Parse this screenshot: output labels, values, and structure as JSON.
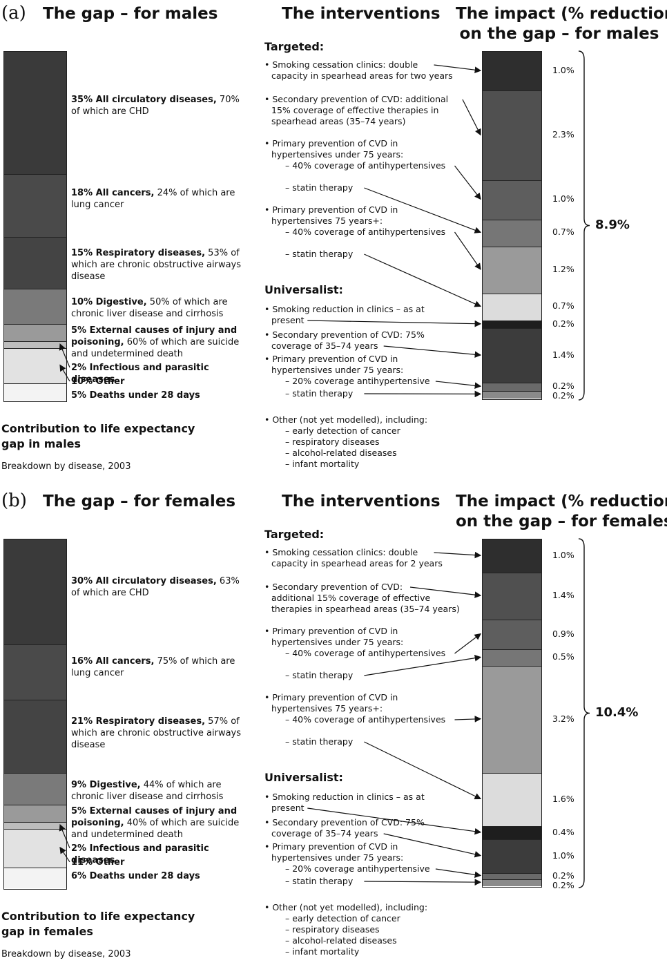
{
  "chart_data": [
    {
      "type": "bar",
      "panel": "(a)",
      "left_title": "The gap – for males",
      "middle_title": "The interventions",
      "right_title": [
        "The impact (% reduction)",
        "on the gap – for males"
      ],
      "caption": [
        "Contribution to life expectancy",
        "gap in males"
      ],
      "subcaption": "Breakdown by disease, 2003",
      "disease_breakdown": [
        {
          "percent": 35,
          "head": "35% All circulatory diseases,",
          "rest": "70% of which are CHD",
          "color": "#3a3a3a"
        },
        {
          "percent": 18,
          "head": "18% All cancers,",
          "rest": "24% of which are lung cancer",
          "color": "#4a4a4a"
        },
        {
          "percent": 15,
          "head": "15% Respiratory diseases,",
          "rest": "53% of which are chronic obstructive airways disease",
          "color": "#444444"
        },
        {
          "percent": 10,
          "head": "10% Digestive,",
          "rest": "50% of which are chronic liver disease and cirrhosis",
          "color": "#7a7a7a"
        },
        {
          "percent": 5,
          "head": "5% External causes of injury and poisoning,",
          "rest": "60% of which are suicide and undetermined death",
          "color": "#9a9a9a"
        },
        {
          "percent": 2,
          "head": "2% Infectious and parasitic diseases",
          "rest": "",
          "color": "#bdbdbd"
        },
        {
          "percent": 10,
          "head": "10% Other",
          "rest": "",
          "color": "#e2e2e2"
        },
        {
          "percent": 5,
          "head": "5% Deaths under 28 days",
          "rest": "",
          "color": "#f3f3f3"
        }
      ],
      "targeted_label": "Targeted:",
      "universalist_label": "Universalist:",
      "interventions": [
        {
          "lines": [
            "• Smoking cessation clinics: double",
            "capacity in spearhead areas for two years"
          ]
        },
        {
          "lines": [
            "• Secondary prevention of CVD: additional",
            "15% coverage of effective therapies in",
            "spearhead areas (35–74 years)"
          ]
        },
        {
          "lines": [
            "• Primary prevention of CVD in",
            "hypertensives under 75 years:",
            "– 40% coverage of antihypertensives"
          ]
        },
        {
          "lines": [
            "– statin therapy"
          ]
        },
        {
          "lines": [
            "• Primary prevention of CVD in",
            "hypertensives 75 years+:",
            "– 40% coverage of antihypertensives"
          ]
        },
        {
          "lines": [
            "– statin therapy"
          ]
        },
        {
          "lines": [
            "• Smoking reduction in clinics – as at",
            "present"
          ]
        },
        {
          "lines": [
            "• Secondary prevention of CVD: 75%",
            "coverage of 35–74 years"
          ]
        },
        {
          "lines": [
            "• Primary prevention of CVD in",
            "hypertensives under 75 years:",
            "– 20% coverage antihypertensive"
          ]
        },
        {
          "lines": [
            "– statin therapy"
          ]
        }
      ],
      "other_lines": [
        "• Other (not yet modelled), including:",
        "– early detection of cancer",
        "– respiratory diseases",
        "– alcohol-related diseases",
        "– infant mortality"
      ],
      "impact": [
        {
          "value": 1.0,
          "label": "1.0%",
          "color": "#2e2e2e"
        },
        {
          "value": 2.3,
          "label": "2.3%",
          "color": "#505050"
        },
        {
          "value": 1.0,
          "label": "1.0%",
          "color": "#5e5e5e"
        },
        {
          "value": 0.7,
          "label": "0.7%",
          "color": "#767676"
        },
        {
          "value": 1.2,
          "label": "1.2%",
          "color": "#9a9a9a"
        },
        {
          "value": 0.7,
          "label": "0.7%",
          "color": "#dcdcdc"
        },
        {
          "value": 0.2,
          "label": "0.2%",
          "color": "#1e1e1e"
        },
        {
          "value": 1.4,
          "label": "1.4%",
          "color": "#3c3c3c"
        },
        {
          "value": 0.2,
          "label": "0.2%",
          "color": "#6a6a6a"
        },
        {
          "value": 0.2,
          "label": "0.2%",
          "color": "#8a8a8a"
        }
      ],
      "total": "8.9%"
    },
    {
      "type": "bar",
      "panel": "(b)",
      "left_title": "The gap – for females",
      "middle_title": "The interventions",
      "right_title": [
        "The impact (% reduction)",
        "on the gap – for females"
      ],
      "caption": [
        "Contribution to life expectancy",
        "gap in females"
      ],
      "subcaption": "Breakdown by disease, 2003",
      "disease_breakdown": [
        {
          "percent": 30,
          "head": "30% All circulatory diseases,",
          "rest": "63% of which are CHD",
          "color": "#3a3a3a"
        },
        {
          "percent": 16,
          "head": "16% All cancers,",
          "rest": "75% of which are lung cancer",
          "color": "#4a4a4a"
        },
        {
          "percent": 21,
          "head": "21% Respiratory diseases,",
          "rest": "57% of which are chronic obstructive airways disease",
          "color": "#444444"
        },
        {
          "percent": 9,
          "head": "9% Digestive,",
          "rest": "44% of which are chronic liver disease and cirrhosis",
          "color": "#7a7a7a"
        },
        {
          "percent": 5,
          "head": "5% External causes of injury and poisoning,",
          "rest": "40% of which are suicide and undetermined death",
          "color": "#9a9a9a"
        },
        {
          "percent": 2,
          "head": "2% Infectious and parasitic diseases",
          "rest": "",
          "color": "#bdbdbd"
        },
        {
          "percent": 11,
          "head": "11% Other",
          "rest": "",
          "color": "#e2e2e2"
        },
        {
          "percent": 6,
          "head": "6% Deaths under 28 days",
          "rest": "",
          "color": "#f3f3f3"
        }
      ],
      "targeted_label": "Targeted:",
      "universalist_label": "Universalist:",
      "interventions": [
        {
          "lines": [
            "• Smoking cessation clinics: double",
            "capacity in spearhead areas for 2 years"
          ]
        },
        {
          "lines": [
            "• Secondary prevention of CVD:",
            "additional 15% coverage of effective",
            "therapies in spearhead areas (35–74 years)"
          ]
        },
        {
          "lines": [
            "• Primary prevention of CVD in",
            "hypertensives under 75 years:",
            "– 40% coverage of antihypertensives"
          ]
        },
        {
          "lines": [
            "– statin therapy"
          ]
        },
        {
          "lines": [
            "• Primary prevention of CVD in",
            "hypertensives 75 years+:",
            "– 40% coverage of antihypertensives"
          ]
        },
        {
          "lines": [
            "– statin therapy"
          ]
        },
        {
          "lines": [
            "• Smoking reduction in clinics – as at",
            "present"
          ]
        },
        {
          "lines": [
            "• Secondary prevention of CVD: 75%",
            "coverage of 35–74 years"
          ]
        },
        {
          "lines": [
            "• Primary prevention of CVD in",
            "hypertensives under 75 years:",
            "– 20% coverage antihypertensive"
          ]
        },
        {
          "lines": [
            "– statin therapy"
          ]
        }
      ],
      "other_lines": [
        "• Other (not yet modelled), including:",
        "– early detection of cancer",
        "– respiratory diseases",
        "– alcohol-related diseases",
        "– infant mortality"
      ],
      "impact": [
        {
          "value": 1.0,
          "label": "1.0%",
          "color": "#2e2e2e"
        },
        {
          "value": 1.4,
          "label": "1.4%",
          "color": "#505050"
        },
        {
          "value": 0.9,
          "label": "0.9%",
          "color": "#5e5e5e"
        },
        {
          "value": 0.5,
          "label": "0.5%",
          "color": "#767676"
        },
        {
          "value": 3.2,
          "label": "3.2%",
          "color": "#9a9a9a"
        },
        {
          "value": 1.6,
          "label": "1.6%",
          "color": "#dcdcdc"
        },
        {
          "value": 0.4,
          "label": "0.4%",
          "color": "#1e1e1e"
        },
        {
          "value": 1.0,
          "label": "1.0%",
          "color": "#3c3c3c"
        },
        {
          "value": 0.2,
          "label": "0.2%",
          "color": "#6a6a6a"
        },
        {
          "value": 0.2,
          "label": "0.2%",
          "color": "#8a8a8a"
        }
      ],
      "total": "10.4%"
    }
  ]
}
